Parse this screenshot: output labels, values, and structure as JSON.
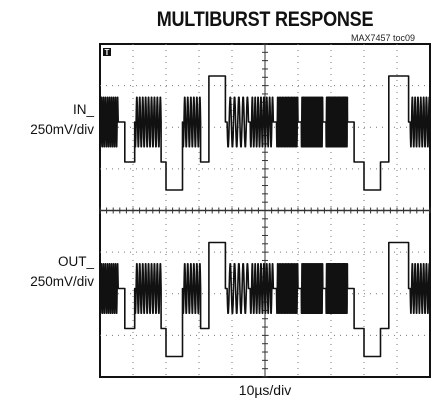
{
  "chart_data": {
    "type": "line",
    "title": "MULTIBURST RESPONSE",
    "figure_code": "MAX7457 toc09",
    "xlabel": "10µs/div",
    "channels": [
      {
        "label": "IN_",
        "scale": "250mV/div"
      },
      {
        "label": "OUT_",
        "scale": "250mV/div"
      }
    ],
    "grid": true,
    "grid_divisions": {
      "x": 10,
      "y": 8
    },
    "trigger_marker": "T",
    "bursts": [
      {
        "start_div": 1.05,
        "end_div": 1.85,
        "level": "mid",
        "cycles": 9
      },
      {
        "start_div": 2.5,
        "end_div": 3.05,
        "level": "mid",
        "cycles": 6
      },
      {
        "start_div": 3.85,
        "end_div": 4.5,
        "level": "mid",
        "cycles": 5
      },
      {
        "start_div": 4.55,
        "end_div": 5.25,
        "level": "mid",
        "cycles": 8
      },
      {
        "start_div": 5.35,
        "end_div": 6.0,
        "level": "mid",
        "cycles": 14
      },
      {
        "start_div": 6.1,
        "end_div": 6.75,
        "level": "mid",
        "cycles": 22
      },
      {
        "start_div": 6.85,
        "end_div": 7.5,
        "level": "mid",
        "cycles": 30
      },
      {
        "start_div": 0.0,
        "end_div": 0.55,
        "level": "mid",
        "cycles": 9
      },
      {
        "start_div": 9.4,
        "end_div": 10.0,
        "level": "mid",
        "cycles": 7
      }
    ]
  }
}
